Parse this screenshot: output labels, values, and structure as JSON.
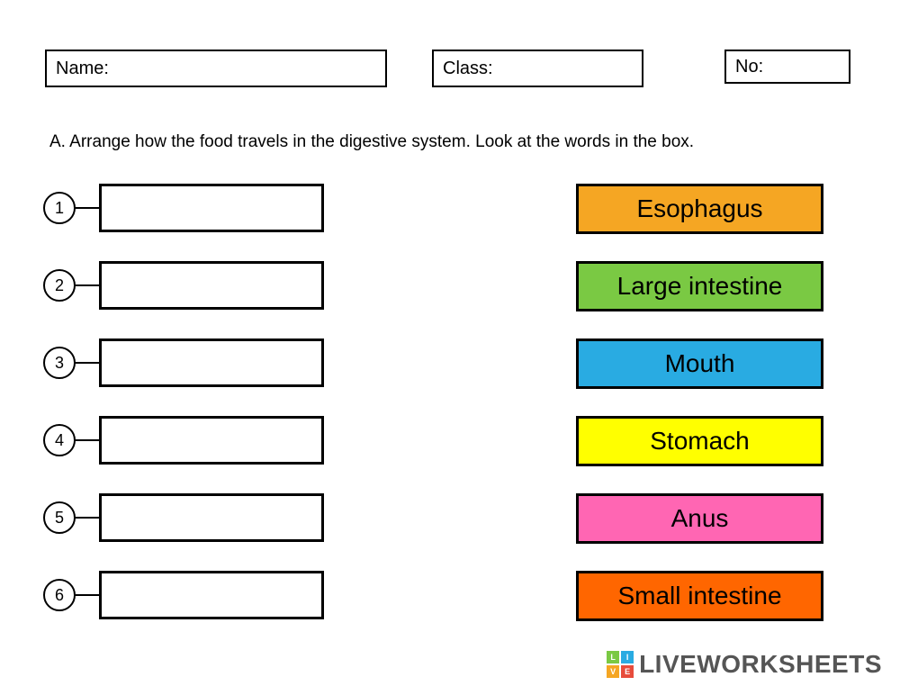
{
  "header": {
    "name_label": "Name:",
    "class_label": "Class:",
    "no_label": "No:"
  },
  "instruction": "A. Arrange how the food travels in the digestive system. Look at the words in the box.",
  "slots": [
    {
      "number": "1"
    },
    {
      "number": "2"
    },
    {
      "number": "3"
    },
    {
      "number": "4"
    },
    {
      "number": "5"
    },
    {
      "number": "6"
    }
  ],
  "words": [
    {
      "label": "Esophagus",
      "bg": "#f5a623",
      "fg": "#000000"
    },
    {
      "label": "Large intestine",
      "bg": "#7ac943",
      "fg": "#000000"
    },
    {
      "label": "Mouth",
      "bg": "#29abe2",
      "fg": "#000000"
    },
    {
      "label": "Stomach",
      "bg": "#ffff00",
      "fg": "#000000"
    },
    {
      "label": "Anus",
      "bg": "#ff66b3",
      "fg": "#000000"
    },
    {
      "label": "Small intestine",
      "bg": "#ff6600",
      "fg": "#000000"
    }
  ],
  "watermark": {
    "text": "LIVEWORKSHEETS",
    "squares": [
      {
        "letter": "L",
        "bg": "#7ac943"
      },
      {
        "letter": "I",
        "bg": "#29abe2"
      },
      {
        "letter": "V",
        "bg": "#f5a623"
      },
      {
        "letter": "E",
        "bg": "#e74c3c"
      }
    ]
  }
}
